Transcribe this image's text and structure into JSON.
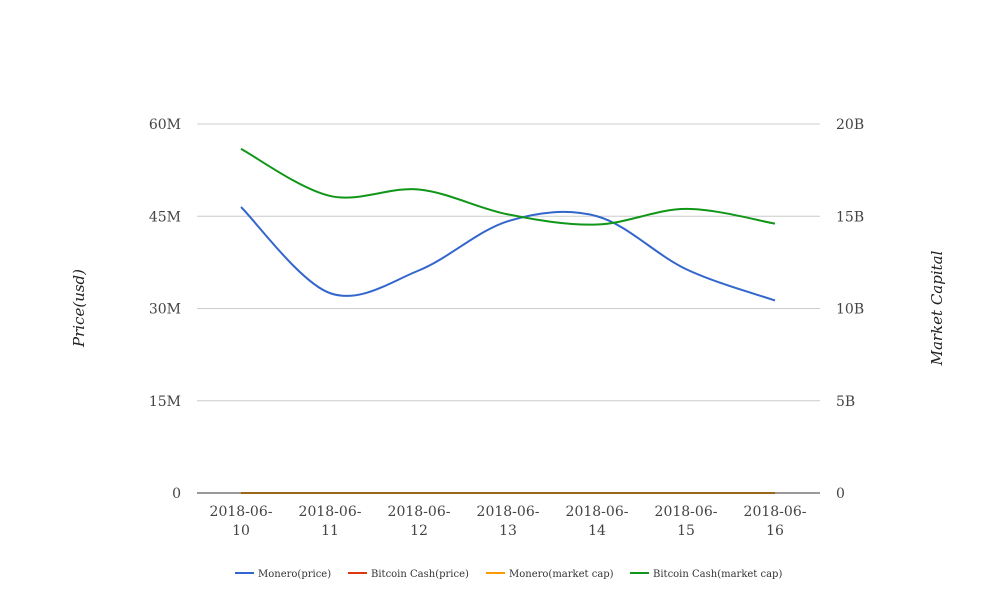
{
  "chart_data": {
    "type": "line",
    "categories": [
      [
        "2018-06-",
        "10"
      ],
      [
        "2018-06-",
        "11"
      ],
      [
        "2018-06-",
        "12"
      ],
      [
        "2018-06-",
        "13"
      ],
      [
        "2018-06-",
        "14"
      ],
      [
        "2018-06-",
        "15"
      ],
      [
        "2018-06-",
        "16"
      ]
    ],
    "left_axis": {
      "label": "Price(usd)",
      "min": 0,
      "max": 60000000,
      "ticks": [
        0,
        15000000,
        30000000,
        45000000,
        60000000
      ],
      "tick_labels": [
        "0",
        "15M",
        "30M",
        "45M",
        "60M"
      ]
    },
    "right_axis": {
      "label": "Market Capital",
      "min": 0,
      "max": 20000000000,
      "ticks": [
        0,
        5000000000,
        10000000000,
        15000000000,
        20000000000
      ],
      "tick_labels": [
        "0",
        "5B",
        "10B",
        "15B",
        "20B"
      ]
    },
    "grid": true,
    "legend_position": "bottom",
    "series": [
      {
        "name": "Monero(price)",
        "axis": "left",
        "color": "#3366cc",
        "values": [
          46500000,
          32500000,
          36200000,
          44200000,
          45000000,
          36400000,
          31300000
        ]
      },
      {
        "name": "Bitcoin Cash(price)",
        "axis": "left",
        "color": "#dc3912",
        "values": [
          0,
          0,
          0,
          0,
          0,
          0,
          0
        ]
      },
      {
        "name": "Monero(market cap)",
        "axis": "right",
        "color": "#ff9900",
        "values": [
          0,
          0,
          0,
          0,
          0,
          0,
          0
        ]
      },
      {
        "name": "Bitcoin Cash(market cap)",
        "axis": "right",
        "color": "#109618",
        "values": [
          18650000000,
          16100000000,
          16450000000,
          15100000000,
          14550000000,
          15400000000,
          14600000000
        ]
      }
    ]
  }
}
